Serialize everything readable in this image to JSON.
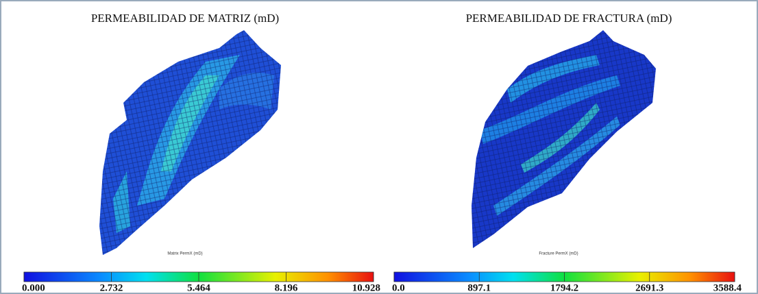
{
  "panels": [
    {
      "title": "PERMEABILIDAD DE MATRIZ (mD)",
      "caption": "Matrix PermX (mD)",
      "colorbar": {
        "lim": [
          0,
          10.928
        ],
        "ticks": [
          {
            "value": 0,
            "label": "0.000"
          },
          2.732,
          5.464,
          8.196,
          10.928
        ]
      }
    },
    {
      "title": "PERMEABILIDAD DE FRACTURA (mD)",
      "caption": "Fracture PermX (mD)",
      "colorbar": {
        "lim": [
          0,
          3588.4
        ],
        "ticks": [
          {
            "value": 0,
            "label": "0.0"
          },
          897.1,
          1794.2,
          2691.3,
          3588.4
        ]
      }
    }
  ]
}
